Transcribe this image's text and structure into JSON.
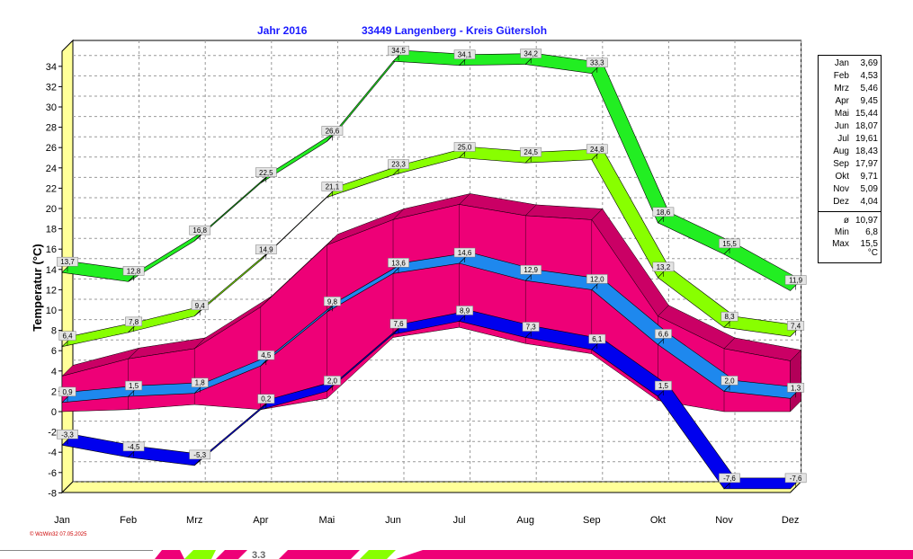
{
  "header": {
    "title_year": "Jahr  2016",
    "title_location": "33449 Langenberg - Kreis Gütersloh"
  },
  "footer": {
    "credit": "© WzWin32  07.05.2025",
    "strip_label": "3.3"
  },
  "colors": {
    "max_abs": "#22ee22",
    "max_mean": "#88ff00",
    "range_area": "#ee0077",
    "mean": "#1e88ee",
    "min_abs": "#0000ee",
    "wall": "#ffff99"
  },
  "chart_data": {
    "type": "line",
    "title": "Jahr  2016    33449 Langenberg - Kreis Gütersloh",
    "ylabel": "Temperatur  (°C)",
    "xlabel": "",
    "categories": [
      "Jan",
      "Feb",
      "Mrz",
      "Apr",
      "Mai",
      "Jun",
      "Jul",
      "Aug",
      "Sep",
      "Okt",
      "Nov",
      "Dez"
    ],
    "ylim": [
      -8,
      35
    ],
    "yticks": [
      -8,
      -6,
      -4,
      -2,
      0,
      2,
      4,
      6,
      8,
      10,
      12,
      14,
      16,
      18,
      20,
      22,
      24,
      26,
      28,
      30,
      32,
      34
    ],
    "grid": true,
    "series": [
      {
        "color": "#22ee22",
        "values": [
          13.7,
          12.8,
          16.8,
          22.5,
          26.6,
          34.5,
          34.1,
          34.2,
          33.3,
          18.6,
          15.5,
          11.9
        ],
        "labels": [
          "13,7",
          "12,8",
          "16,8",
          "22,5",
          "26,6",
          "34,5",
          "34,1",
          "34,2",
          "33,3",
          "18,6",
          "15,5",
          "11,9"
        ]
      },
      {
        "color": "#88ff00",
        "values": [
          6.4,
          7.8,
          9.4,
          14.9,
          21.1,
          23.3,
          25.0,
          24.5,
          24.8,
          13.2,
          8.3,
          7.4
        ],
        "labels": [
          "6,4",
          "7,8",
          "9,4",
          "14,9",
          "21,1",
          "23,3",
          "25,0",
          "24,5",
          "24,8",
          "13,2",
          "8,3",
          "7,4"
        ]
      },
      {
        "color": "#1e88ee",
        "values": [
          0.9,
          1.5,
          1.8,
          4.5,
          9.8,
          13.6,
          14.6,
          12.9,
          12.0,
          6.6,
          2.0,
          1.3
        ],
        "labels": [
          "0,9",
          "1,5",
          "1,8",
          "4,5",
          "9,8",
          "13,6",
          "14,6",
          "12,9",
          "12,0",
          "6,6",
          "2,0",
          "1,3"
        ]
      },
      {
        "color": "#0000ee",
        "values": [
          -3.3,
          -4.5,
          -5.3,
          0.2,
          2.0,
          7.6,
          8.9,
          7.3,
          6.1,
          1.5,
          -7.6,
          -7.6
        ],
        "labels": [
          "-3,3",
          "-4,5",
          "-5,3",
          "0,2",
          "2,0",
          "7,6",
          "8,9",
          "7,3",
          "6,1",
          "1,5",
          "-7,6",
          "-7,6"
        ]
      }
    ],
    "range_band": {
      "color": "#ee0077",
      "upper": [
        3.5,
        5.2,
        6.2,
        10.3,
        16.4,
        18.9,
        20.4,
        19.3,
        18.9,
        9.4,
        6.2,
        5.0
      ],
      "lower": [
        0.0,
        0.2,
        0.7,
        0.2,
        1.3,
        7.3,
        8.3,
        6.7,
        5.7,
        1.1,
        0.0,
        0.0
      ]
    },
    "legend": {
      "position": "right",
      "monthly": [
        {
          "month": "Jan",
          "value": "3,69"
        },
        {
          "month": "Feb",
          "value": "4,53"
        },
        {
          "month": "Mrz",
          "value": "5,46"
        },
        {
          "month": "Apr",
          "value": "9,45"
        },
        {
          "month": "Mai",
          "value": "15,44"
        },
        {
          "month": "Jun",
          "value": "18,07"
        },
        {
          "month": "Jul",
          "value": "19,61"
        },
        {
          "month": "Aug",
          "value": "18,43"
        },
        {
          "month": "Sep",
          "value": "17,97"
        },
        {
          "month": "Okt",
          "value": "9,71"
        },
        {
          "month": "Nov",
          "value": "5,09"
        },
        {
          "month": "Dez",
          "value": "4,04"
        }
      ],
      "summary": [
        {
          "label": "ø",
          "value": "10,97"
        },
        {
          "label": "Min",
          "value": "6,8"
        },
        {
          "label": "Max",
          "value": "15,5"
        }
      ],
      "unit": "°C"
    }
  }
}
